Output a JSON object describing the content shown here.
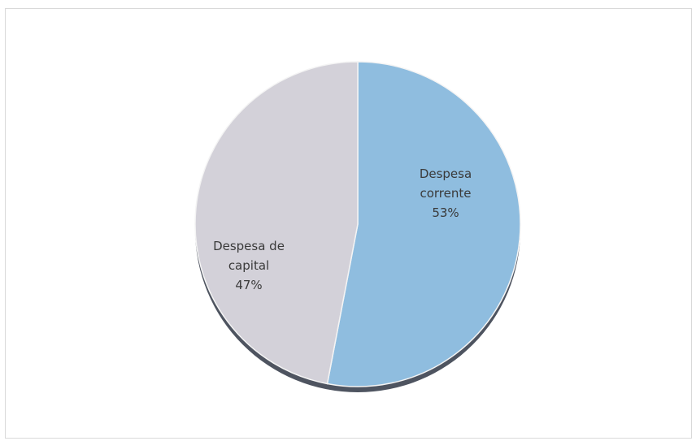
{
  "chart_data": {
    "type": "pie",
    "title": "",
    "slices": [
      {
        "name": "Despesa corrente",
        "label_lines": [
          "Despesa",
          "corrente",
          "53%"
        ],
        "value": 53,
        "color": "#8fbddf"
      },
      {
        "name": "Despesa de capital",
        "label_lines": [
          "Despesa de",
          "capital",
          "47%"
        ],
        "value": 47,
        "color": "#d3d1d9"
      }
    ],
    "start_angle_deg": 0,
    "direction": "clockwise",
    "legend": "none"
  }
}
